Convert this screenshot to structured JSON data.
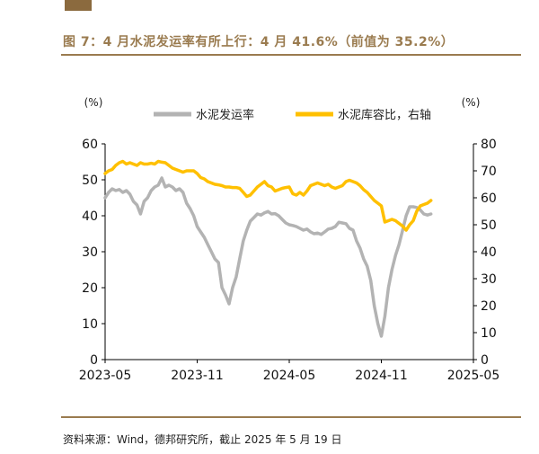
{
  "header": {
    "title": "图 7：4 月水泥发运率有所上行：4 月 41.6%（前值为 35.2%）"
  },
  "footer": {
    "source": "资料来源：Wind，德邦研究所，截止 2025 年 5 月 19 日"
  },
  "colors": {
    "accent": "#9a7b4f",
    "shipment": "#b3b3b3",
    "inventory": "#ffc000"
  },
  "chart_data": {
    "type": "line",
    "title": "",
    "left_unit": "(%)",
    "right_unit": "(%)",
    "left_ylim": [
      0,
      60
    ],
    "right_ylim": [
      0,
      80
    ],
    "left_ticks": [
      0,
      10,
      20,
      30,
      40,
      50,
      60
    ],
    "right_ticks": [
      0,
      10,
      20,
      30,
      40,
      50,
      60,
      70,
      80
    ],
    "x_ticks": [
      "2023-05",
      "2023-11",
      "2024-05",
      "2024-11",
      "2025-05"
    ],
    "x_range": [
      0,
      104
    ],
    "legend": [
      "水泥发运率",
      "水泥库容比，右轴"
    ],
    "series": [
      {
        "name": "水泥发运率",
        "axis": "left",
        "points": [
          [
            0,
            45
          ],
          [
            1,
            46.5
          ],
          [
            2,
            47.5
          ],
          [
            3,
            47
          ],
          [
            4,
            47.3
          ],
          [
            5,
            46.5
          ],
          [
            6,
            47
          ],
          [
            7,
            46
          ],
          [
            8,
            44
          ],
          [
            9,
            43
          ],
          [
            10,
            40.5
          ],
          [
            11,
            44
          ],
          [
            12,
            45
          ],
          [
            13,
            47
          ],
          [
            14,
            48
          ],
          [
            15,
            48.5
          ],
          [
            16,
            50.5
          ],
          [
            17,
            48
          ],
          [
            18,
            48.5
          ],
          [
            19,
            48
          ],
          [
            20,
            47
          ],
          [
            21,
            47.5
          ],
          [
            22,
            46.5
          ],
          [
            23,
            43.5
          ],
          [
            24,
            42
          ],
          [
            25,
            40
          ],
          [
            26,
            37
          ],
          [
            27,
            35.5
          ],
          [
            28,
            34
          ],
          [
            29,
            32
          ],
          [
            30,
            30
          ],
          [
            31,
            28
          ],
          [
            32,
            27
          ],
          [
            33,
            20
          ],
          [
            34,
            18
          ],
          [
            35,
            15.5
          ],
          [
            36,
            20
          ],
          [
            37,
            23
          ],
          [
            38,
            28
          ],
          [
            39,
            33
          ],
          [
            40,
            36
          ],
          [
            41,
            38.5
          ],
          [
            42,
            39.5
          ],
          [
            43,
            40.5
          ],
          [
            44,
            40.2
          ],
          [
            45,
            40.8
          ],
          [
            46,
            41.2
          ],
          [
            47,
            40.5
          ],
          [
            48,
            40.6
          ],
          [
            49,
            40
          ],
          [
            50,
            39
          ],
          [
            51,
            38
          ],
          [
            52,
            37.5
          ],
          [
            53,
            37.3
          ],
          [
            54,
            37
          ],
          [
            55,
            36.5
          ],
          [
            56,
            36
          ],
          [
            57,
            36.3
          ],
          [
            58,
            35.5
          ],
          [
            59,
            35
          ],
          [
            60,
            35.2
          ],
          [
            61,
            34.8
          ],
          [
            62,
            35.5
          ],
          [
            63,
            36.3
          ],
          [
            64,
            36.5
          ],
          [
            65,
            37
          ],
          [
            66,
            38.2
          ],
          [
            67,
            38
          ],
          [
            68,
            37.8
          ],
          [
            69,
            36.5
          ],
          [
            70,
            36
          ],
          [
            71,
            33
          ],
          [
            72,
            31
          ],
          [
            73,
            28
          ],
          [
            74,
            26
          ],
          [
            75,
            22
          ],
          [
            76,
            15
          ],
          [
            77,
            10
          ],
          [
            78,
            6.5
          ],
          [
            79,
            12
          ],
          [
            80,
            20
          ],
          [
            81,
            25
          ],
          [
            82,
            29
          ],
          [
            83,
            32
          ],
          [
            84,
            36
          ],
          [
            85,
            40
          ],
          [
            86,
            42.5
          ],
          [
            87,
            42.5
          ],
          [
            88,
            42.3
          ],
          [
            89,
            41.6
          ],
          [
            90,
            40.5
          ],
          [
            91,
            40.2
          ],
          [
            92,
            40.5
          ]
        ]
      },
      {
        "name": "水泥库容比，右轴",
        "axis": "right",
        "points": [
          [
            0,
            69
          ],
          [
            1,
            70
          ],
          [
            2,
            70.5
          ],
          [
            3,
            72
          ],
          [
            4,
            73
          ],
          [
            5,
            73.5
          ],
          [
            6,
            72.5
          ],
          [
            7,
            73
          ],
          [
            8,
            72.5
          ],
          [
            9,
            72
          ],
          [
            10,
            73
          ],
          [
            11,
            72.5
          ],
          [
            12,
            72.5
          ],
          [
            13,
            72.8
          ],
          [
            14,
            72.5
          ],
          [
            15,
            73.5
          ],
          [
            16,
            73.2
          ],
          [
            17,
            73
          ],
          [
            18,
            72
          ],
          [
            19,
            71
          ],
          [
            20,
            70.5
          ],
          [
            21,
            70
          ],
          [
            22,
            69.5
          ],
          [
            23,
            70
          ],
          [
            24,
            70
          ],
          [
            25,
            70
          ],
          [
            26,
            69
          ],
          [
            27,
            67.5
          ],
          [
            28,
            67
          ],
          [
            29,
            66
          ],
          [
            30,
            65.5
          ],
          [
            31,
            65
          ],
          [
            32,
            64.8
          ],
          [
            33,
            64.5
          ],
          [
            34,
            64
          ],
          [
            35,
            64
          ],
          [
            36,
            63.8
          ],
          [
            37,
            63.8
          ],
          [
            38,
            63.5
          ],
          [
            39,
            62
          ],
          [
            40,
            60.5
          ],
          [
            41,
            61
          ],
          [
            42,
            62.5
          ],
          [
            43,
            64
          ],
          [
            44,
            65
          ],
          [
            45,
            66
          ],
          [
            46,
            64.5
          ],
          [
            47,
            64
          ],
          [
            48,
            62.5
          ],
          [
            49,
            63
          ],
          [
            50,
            63.5
          ],
          [
            51,
            63.8
          ],
          [
            52,
            64
          ],
          [
            53,
            61.5
          ],
          [
            54,
            61
          ],
          [
            55,
            62
          ],
          [
            56,
            61
          ],
          [
            57,
            62.5
          ],
          [
            58,
            64.5
          ],
          [
            59,
            65
          ],
          [
            60,
            65.5
          ],
          [
            61,
            65
          ],
          [
            62,
            64.5
          ],
          [
            63,
            65
          ],
          [
            64,
            64
          ],
          [
            65,
            63.5
          ],
          [
            66,
            64
          ],
          [
            67,
            64.5
          ],
          [
            68,
            66
          ],
          [
            69,
            66.5
          ],
          [
            70,
            66
          ],
          [
            71,
            65.5
          ],
          [
            72,
            64.5
          ],
          [
            73,
            63
          ],
          [
            74,
            62
          ],
          [
            75,
            60.5
          ],
          [
            76,
            59
          ],
          [
            77,
            58
          ],
          [
            78,
            57
          ],
          [
            79,
            51
          ],
          [
            80,
            51.5
          ],
          [
            81,
            52
          ],
          [
            82,
            51.5
          ],
          [
            83,
            50.5
          ],
          [
            84,
            49.5
          ],
          [
            85,
            48
          ],
          [
            86,
            50
          ],
          [
            87,
            51.5
          ],
          [
            88,
            55
          ],
          [
            89,
            57
          ],
          [
            90,
            57.5
          ],
          [
            91,
            58
          ],
          [
            92,
            59
          ]
        ]
      }
    ]
  }
}
